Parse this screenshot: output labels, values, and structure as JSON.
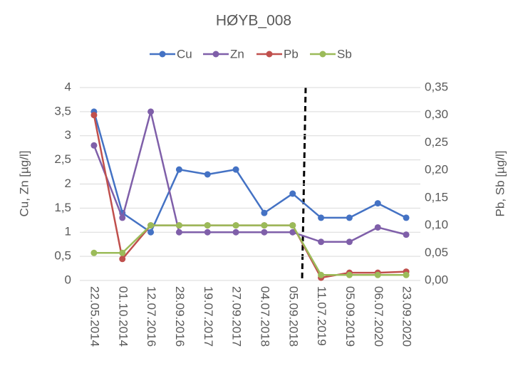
{
  "chart_data": {
    "type": "line",
    "title": "HØYB_008",
    "y_label": "Cu, Zn [µg/l]",
    "y2_label": "Pb, Sb [µg/l]",
    "categories": [
      "22.05.2014",
      "01.10.2014",
      "12.07.2016",
      "28.09.2016",
      "19.07.2017",
      "27.09.2017",
      "04.07.2018",
      "05.09.2018",
      "11.07.2019",
      "05.09.2019",
      "06.07.2020",
      "23.09.2020"
    ],
    "series": [
      {
        "name": "Cu",
        "color": "#4472c4",
        "values": [
          3.5,
          1.4,
          1.0,
          2.3,
          2.2,
          2.3,
          1.4,
          1.8,
          1.3,
          1.3,
          1.6,
          1.3
        ]
      },
      {
        "name": "Zn",
        "color": "#7f5fa9",
        "values": [
          2.8,
          1.3,
          3.5,
          1.0,
          1.0,
          1.0,
          1.0,
          1.0,
          0.8,
          0.8,
          1.1,
          0.95
        ]
      },
      {
        "name": "Pb",
        "color": "#c0504d",
        "axis": "y2",
        "values": [
          0.3,
          0.039,
          0.1,
          0.1,
          0.1,
          0.1,
          0.1,
          0.1,
          0.005,
          0.014,
          0.014,
          0.016
        ]
      },
      {
        "name": "Sb",
        "color": "#9bbb59",
        "axis": "y2",
        "values": [
          0.05,
          0.05,
          0.1,
          0.1,
          0.1,
          0.1,
          0.1,
          0.1,
          0.01,
          0.01,
          0.01,
          0.01
        ]
      }
    ],
    "ylim": [
      0,
      4
    ],
    "yticks": [
      0,
      {
        "value": 0.5,
        "label": "0,5"
      },
      1,
      {
        "value": 1.5,
        "label": "1,5"
      },
      2,
      {
        "value": 2.5,
        "label": "2,5"
      },
      3,
      {
        "value": 3.5,
        "label": "3,5"
      },
      4
    ],
    "y2lim": [
      0,
      0.35
    ],
    "y2ticks": [
      {
        "value": 0,
        "label": "0,00"
      },
      {
        "value": 0.05,
        "label": "0,05"
      },
      {
        "value": 0.1,
        "label": "0,10"
      },
      {
        "value": 0.15,
        "label": "0,15"
      },
      {
        "value": 0.2,
        "label": "0,20"
      },
      {
        "value": 0.25,
        "label": "0,25"
      },
      {
        "value": 0.3,
        "label": "0,30"
      },
      {
        "value": 0.35,
        "label": "0,35"
      }
    ],
    "grid": true,
    "legend": "top"
  }
}
